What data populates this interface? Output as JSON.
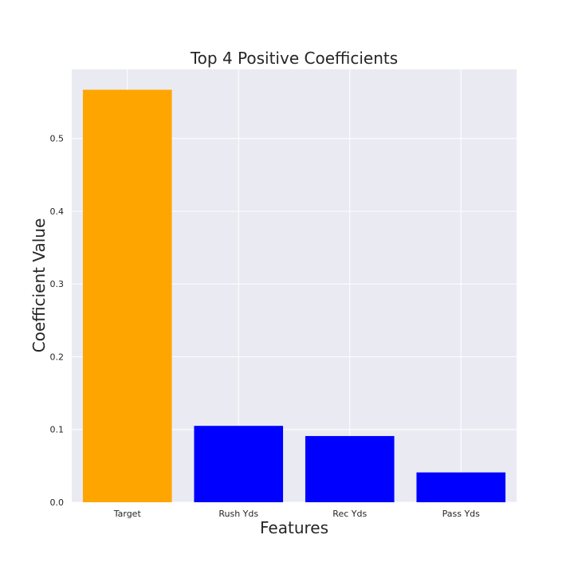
{
  "chart_data": {
    "type": "bar",
    "title": "Top 4 Positive Coefficients",
    "xlabel": "Features",
    "ylabel": "Coefficient Value",
    "categories": [
      "Target",
      "Rush Yds",
      "Rec Yds",
      "Pass Yds"
    ],
    "values": [
      0.567,
      0.105,
      0.091,
      0.041
    ],
    "bar_colors": [
      "#ffa500",
      "#0000ff",
      "#0000ff",
      "#0000ff"
    ],
    "ylim": [
      0,
      0.595
    ],
    "yticks": [
      0.0,
      0.1,
      0.2,
      0.3,
      0.4,
      0.5
    ],
    "ytick_labels": [
      "0.0",
      "0.1",
      "0.2",
      "0.3",
      "0.4",
      "0.5"
    ],
    "grid": true,
    "background_color": "#eaeaf2",
    "grid_color": "#ffffff"
  }
}
